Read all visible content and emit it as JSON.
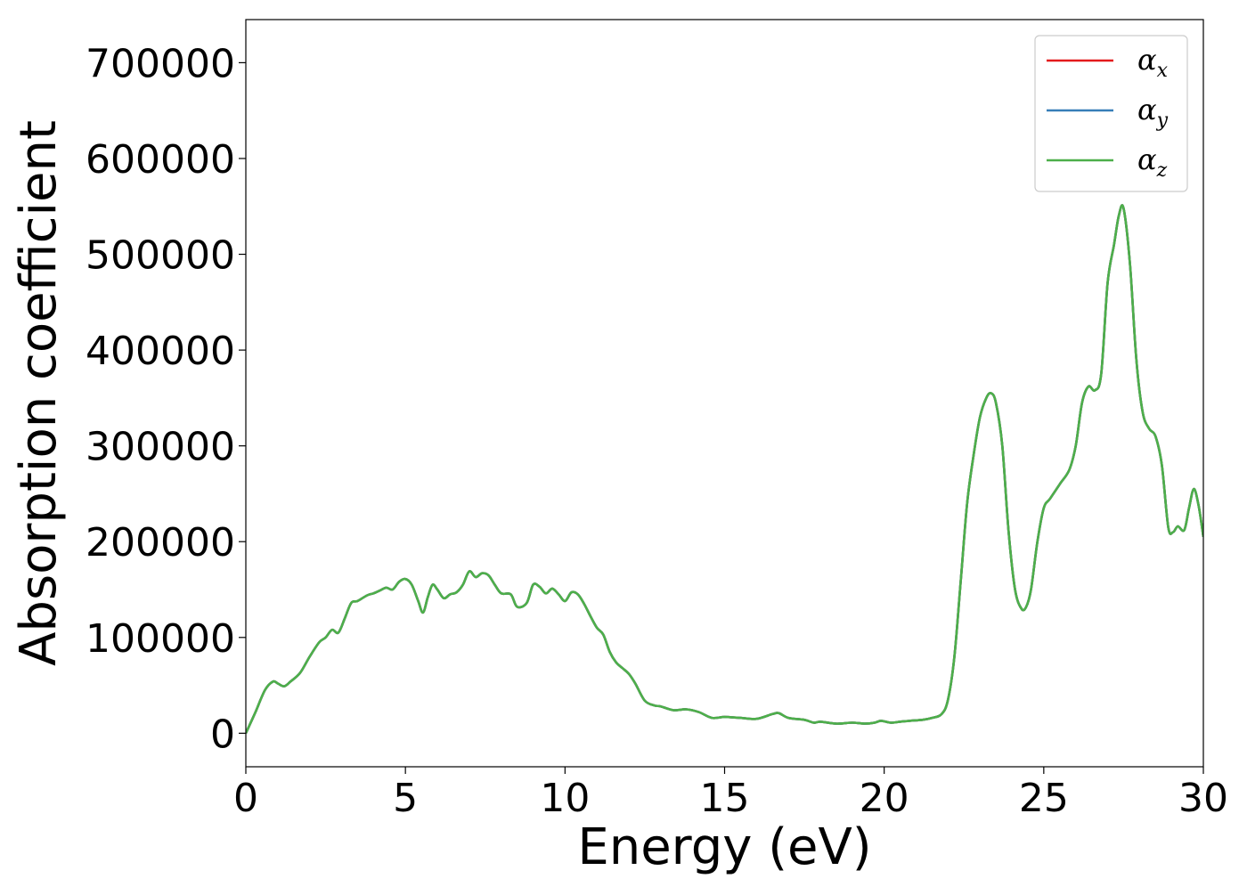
{
  "chart_data": {
    "type": "line",
    "title": "",
    "xlabel": "Energy (eV)",
    "ylabel": "Absorption coefficient",
    "xlim": [
      0,
      30
    ],
    "ylim": [
      -35000,
      745000
    ],
    "x_ticks": [
      0,
      5,
      10,
      15,
      20,
      25,
      30
    ],
    "y_ticks": [
      0,
      100000,
      200000,
      300000,
      400000,
      500000,
      600000,
      700000
    ],
    "grid": false,
    "legend_position": "top-right",
    "legend": [
      {
        "symbol": "α",
        "subscript": "x",
        "color": "#e41a1c"
      },
      {
        "symbol": "α",
        "subscript": "y",
        "color": "#377eb8"
      },
      {
        "symbol": "α",
        "subscript": "z",
        "color": "#4daf4a"
      }
    ],
    "series": [
      {
        "color": "#e41a1c",
        "x": [
          0,
          0.3,
          0.6,
          0.85,
          1.0,
          1.2,
          1.4,
          1.7,
          2.0,
          2.3,
          2.5,
          2.7,
          2.9,
          3.1,
          3.3,
          3.5,
          3.8,
          4.0,
          4.2,
          4.4,
          4.6,
          4.8,
          5.0,
          5.2,
          5.4,
          5.55,
          5.7,
          5.85,
          6.0,
          6.2,
          6.4,
          6.6,
          6.8,
          7.0,
          7.2,
          7.4,
          7.6,
          7.8,
          8.0,
          8.3,
          8.5,
          8.8,
          9.0,
          9.2,
          9.4,
          9.6,
          9.8,
          10.0,
          10.2,
          10.4,
          10.6,
          10.8,
          11.0,
          11.2,
          11.4,
          11.6,
          11.8,
          12.0,
          12.2,
          12.5,
          12.8,
          13.0,
          13.4,
          13.8,
          14.2,
          14.6,
          15.0,
          15.5,
          16.0,
          16.5,
          16.7,
          17.0,
          17.5,
          17.8,
          18.0,
          18.5,
          19.0,
          19.4,
          19.7,
          19.9,
          20.2,
          20.5,
          20.8,
          21.2,
          21.5,
          21.8,
          22.0,
          22.2,
          22.4,
          22.6,
          22.8,
          23.0,
          23.2,
          23.35,
          23.5,
          23.7,
          23.9,
          24.1,
          24.3,
          24.45,
          24.6,
          24.8,
          25.0,
          25.2,
          25.5,
          25.8,
          26.0,
          26.2,
          26.4,
          26.6,
          26.8,
          27.0,
          27.2,
          27.35,
          27.5,
          27.7,
          27.9,
          28.1,
          28.3,
          28.5,
          28.7,
          28.9,
          29.05,
          29.2,
          29.4,
          29.55,
          29.7,
          29.85,
          30.0
        ],
        "y": [
          0,
          22000,
          45000,
          54000,
          52000,
          49000,
          54000,
          63000,
          80000,
          95000,
          100000,
          108000,
          105000,
          120000,
          136000,
          138000,
          144000,
          146000,
          149000,
          152000,
          150000,
          158000,
          161000,
          155000,
          138000,
          126000,
          142000,
          155000,
          150000,
          141000,
          145000,
          147000,
          155000,
          169000,
          163000,
          167000,
          165000,
          155000,
          146000,
          145000,
          132000,
          136000,
          155000,
          153000,
          146000,
          151000,
          145000,
          138000,
          147000,
          145000,
          135000,
          122000,
          110000,
          103000,
          85000,
          74000,
          68000,
          62000,
          52000,
          34000,
          29000,
          28000,
          24000,
          25000,
          22000,
          16000,
          17000,
          16000,
          15000,
          20000,
          21000,
          16000,
          14000,
          11000,
          12000,
          10000,
          11000,
          10000,
          11000,
          13000,
          11000,
          12000,
          13000,
          14000,
          16000,
          20000,
          35000,
          80000,
          160000,
          240000,
          290000,
          330000,
          350000,
          355000,
          345000,
          300000,
          210000,
          150000,
          130000,
          132000,
          150000,
          200000,
          235000,
          245000,
          260000,
          275000,
          300000,
          345000,
          362000,
          358000,
          375000,
          470000,
          510000,
          540000,
          548000,
          490000,
          390000,
          335000,
          318000,
          310000,
          280000,
          215000,
          210000,
          216000,
          212000,
          235000,
          255000,
          238000,
          205000
        ]
      },
      {
        "color": "#377eb8",
        "x": [
          0,
          0.3,
          0.6,
          0.85,
          1.0,
          1.2,
          1.4,
          1.7,
          2.0,
          2.3,
          2.5,
          2.7,
          2.9,
          3.1,
          3.3,
          3.5,
          3.8,
          4.0,
          4.2,
          4.4,
          4.6,
          4.8,
          5.0,
          5.2,
          5.4,
          5.55,
          5.7,
          5.85,
          6.0,
          6.2,
          6.4,
          6.6,
          6.8,
          7.0,
          7.2,
          7.4,
          7.6,
          7.8,
          8.0,
          8.3,
          8.5,
          8.8,
          9.0,
          9.2,
          9.4,
          9.6,
          9.8,
          10.0,
          10.2,
          10.4,
          10.6,
          10.8,
          11.0,
          11.2,
          11.4,
          11.6,
          11.8,
          12.0,
          12.2,
          12.5,
          12.8,
          13.0,
          13.4,
          13.8,
          14.2,
          14.6,
          15.0,
          15.5,
          16.0,
          16.5,
          16.7,
          17.0,
          17.5,
          17.8,
          18.0,
          18.5,
          19.0,
          19.4,
          19.7,
          19.9,
          20.2,
          20.5,
          20.8,
          21.2,
          21.5,
          21.8,
          22.0,
          22.2,
          22.4,
          22.6,
          22.8,
          23.0,
          23.2,
          23.35,
          23.5,
          23.7,
          23.9,
          24.1,
          24.3,
          24.45,
          24.6,
          24.8,
          25.0,
          25.2,
          25.5,
          25.8,
          26.0,
          26.2,
          26.4,
          26.6,
          26.8,
          27.0,
          27.2,
          27.35,
          27.5,
          27.7,
          27.9,
          28.1,
          28.3,
          28.5,
          28.7,
          28.9,
          29.05,
          29.2,
          29.4,
          29.55,
          29.7,
          29.85,
          30.0
        ],
        "y": [
          0,
          22000,
          45000,
          54000,
          52000,
          49000,
          54000,
          63000,
          80000,
          95000,
          100000,
          108000,
          105000,
          120000,
          136000,
          138000,
          144000,
          146000,
          149000,
          152000,
          150000,
          158000,
          161000,
          155000,
          138000,
          126000,
          142000,
          155000,
          150000,
          141000,
          145000,
          147000,
          155000,
          169000,
          163000,
          167000,
          165000,
          155000,
          146000,
          145000,
          132000,
          136000,
          155000,
          153000,
          146000,
          151000,
          145000,
          138000,
          147000,
          145000,
          135000,
          122000,
          110000,
          103000,
          85000,
          74000,
          68000,
          62000,
          52000,
          34000,
          29000,
          28000,
          24000,
          25000,
          22000,
          16000,
          17000,
          16000,
          15000,
          20000,
          21000,
          16000,
          14000,
          11000,
          12000,
          10000,
          11000,
          10000,
          11000,
          13000,
          11000,
          12000,
          13000,
          14000,
          16000,
          20000,
          35000,
          80000,
          160000,
          240000,
          290000,
          330000,
          350000,
          355000,
          345000,
          300000,
          210000,
          150000,
          130000,
          132000,
          150000,
          200000,
          235000,
          245000,
          260000,
          275000,
          300000,
          345000,
          362000,
          358000,
          375000,
          470000,
          510000,
          540000,
          548000,
          490000,
          390000,
          335000,
          318000,
          310000,
          280000,
          215000,
          210000,
          216000,
          212000,
          235000,
          255000,
          238000,
          205000
        ]
      },
      {
        "color": "#4daf4a",
        "x": [
          0,
          0.3,
          0.6,
          0.85,
          1.0,
          1.2,
          1.4,
          1.7,
          2.0,
          2.3,
          2.5,
          2.7,
          2.9,
          3.1,
          3.3,
          3.5,
          3.8,
          4.0,
          4.2,
          4.4,
          4.6,
          4.8,
          5.0,
          5.2,
          5.4,
          5.55,
          5.7,
          5.85,
          6.0,
          6.2,
          6.4,
          6.6,
          6.8,
          7.0,
          7.2,
          7.4,
          7.6,
          7.8,
          8.0,
          8.3,
          8.5,
          8.8,
          9.0,
          9.2,
          9.4,
          9.6,
          9.8,
          10.0,
          10.2,
          10.4,
          10.6,
          10.8,
          11.0,
          11.2,
          11.4,
          11.6,
          11.8,
          12.0,
          12.2,
          12.5,
          12.8,
          13.0,
          13.4,
          13.8,
          14.2,
          14.6,
          15.0,
          15.5,
          16.0,
          16.5,
          16.7,
          17.0,
          17.5,
          17.8,
          18.0,
          18.5,
          19.0,
          19.4,
          19.7,
          19.9,
          20.2,
          20.5,
          20.8,
          21.2,
          21.5,
          21.8,
          22.0,
          22.2,
          22.4,
          22.6,
          22.8,
          23.0,
          23.2,
          23.35,
          23.5,
          23.7,
          23.9,
          24.1,
          24.3,
          24.45,
          24.6,
          24.8,
          25.0,
          25.2,
          25.5,
          25.8,
          26.0,
          26.2,
          26.4,
          26.6,
          26.8,
          27.0,
          27.2,
          27.35,
          27.5,
          27.7,
          27.9,
          28.1,
          28.3,
          28.5,
          28.7,
          28.9,
          29.05,
          29.2,
          29.4,
          29.55,
          29.7,
          29.85,
          30.0
        ],
        "y": [
          0,
          22000,
          45000,
          54000,
          52000,
          49000,
          54000,
          63000,
          80000,
          95000,
          100000,
          108000,
          105000,
          120000,
          136000,
          138000,
          144000,
          146000,
          149000,
          152000,
          150000,
          158000,
          161000,
          155000,
          138000,
          126000,
          142000,
          155000,
          150000,
          141000,
          145000,
          147000,
          155000,
          169000,
          163000,
          167000,
          165000,
          155000,
          146000,
          145000,
          132000,
          136000,
          155000,
          153000,
          146000,
          151000,
          145000,
          138000,
          147000,
          145000,
          135000,
          122000,
          110000,
          103000,
          85000,
          74000,
          68000,
          62000,
          52000,
          34000,
          29000,
          28000,
          24000,
          25000,
          22000,
          16000,
          17000,
          16000,
          15000,
          20000,
          21000,
          16000,
          14000,
          11000,
          12000,
          10000,
          11000,
          10000,
          11000,
          13000,
          11000,
          12000,
          13000,
          14000,
          16000,
          20000,
          35000,
          80000,
          160000,
          240000,
          290000,
          330000,
          350000,
          355000,
          345000,
          300000,
          210000,
          150000,
          130000,
          132000,
          150000,
          200000,
          235000,
          245000,
          260000,
          275000,
          300000,
          345000,
          362000,
          358000,
          375000,
          470000,
          510000,
          540000,
          548000,
          490000,
          390000,
          335000,
          318000,
          310000,
          280000,
          215000,
          210000,
          216000,
          212000,
          235000,
          255000,
          238000,
          205000
        ]
      }
    ]
  }
}
